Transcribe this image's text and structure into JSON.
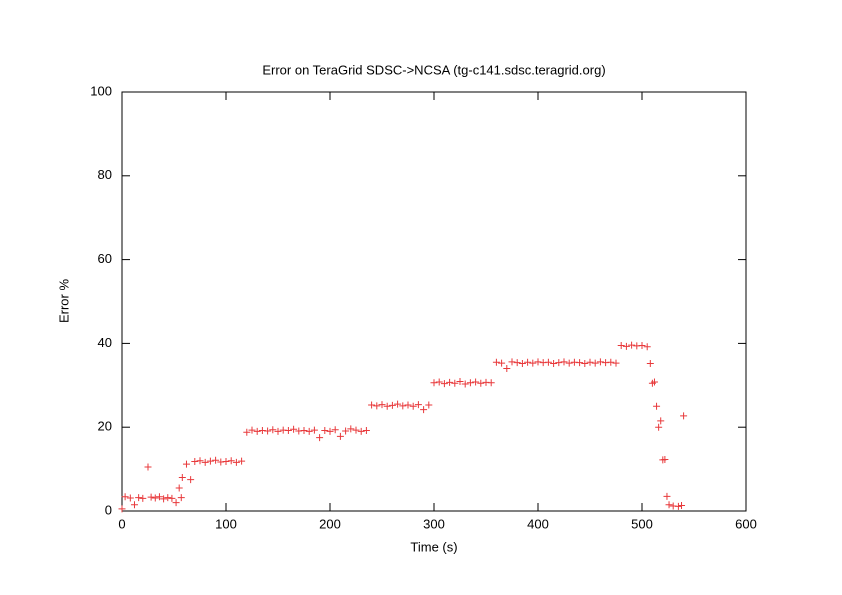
{
  "chart_data": {
    "type": "scatter",
    "title": "Error on TeraGrid SDSC->NCSA (tg-c141.sdsc.teragrid.org)",
    "x_label": "Time (s)",
    "y_label": "Error %",
    "xlim": [
      0,
      600
    ],
    "xticks": [
      0,
      100,
      200,
      300,
      400,
      500,
      600
    ],
    "ylim": [
      0,
      100
    ],
    "yticks": [
      0,
      20,
      40,
      60,
      80,
      100
    ],
    "grid": false,
    "color": "#e8393b",
    "x": [
      0,
      3,
      8,
      12,
      16,
      20,
      25,
      28,
      32,
      36,
      40,
      44,
      48,
      52,
      55,
      57,
      58,
      62,
      66,
      70,
      75,
      80,
      85,
      90,
      95,
      100,
      105,
      110,
      115,
      120,
      125,
      130,
      135,
      140,
      145,
      150,
      155,
      160,
      165,
      170,
      175,
      180,
      185,
      190,
      195,
      200,
      205,
      210,
      215,
      220,
      225,
      230,
      235,
      240,
      245,
      250,
      255,
      260,
      265,
      270,
      275,
      280,
      285,
      290,
      295,
      300,
      305,
      310,
      315,
      320,
      325,
      330,
      335,
      340,
      345,
      350,
      355,
      360,
      365,
      370,
      375,
      380,
      385,
      390,
      395,
      400,
      405,
      410,
      415,
      420,
      425,
      430,
      435,
      440,
      445,
      450,
      455,
      460,
      465,
      470,
      475,
      480,
      485,
      490,
      495,
      500,
      505,
      508,
      510,
      512,
      514,
      516,
      518,
      520,
      522,
      524,
      526,
      530,
      535,
      538,
      540
    ],
    "values": [
      0.5,
      3.4,
      3.1,
      1.5,
      3.2,
      3.0,
      10.5,
      3.3,
      3.1,
      3.4,
      2.9,
      3.2,
      3.0,
      2.0,
      5.5,
      3.2,
      8.0,
      11.2,
      7.5,
      11.8,
      12.0,
      11.6,
      11.9,
      12.1,
      11.7,
      11.8,
      12.0,
      11.6,
      11.9,
      18.8,
      19.3,
      19.0,
      19.2,
      19.1,
      19.4,
      19.0,
      19.3,
      19.2,
      19.5,
      19.1,
      19.2,
      19.0,
      19.3,
      17.5,
      19.2,
      19.0,
      19.4,
      17.8,
      19.1,
      19.6,
      19.3,
      19.0,
      19.2,
      25.3,
      25.1,
      25.4,
      25.0,
      25.2,
      25.5,
      25.1,
      25.3,
      25.0,
      25.4,
      24.2,
      25.3,
      30.6,
      30.8,
      30.4,
      30.7,
      30.5,
      30.9,
      30.3,
      30.6,
      30.8,
      30.5,
      30.7,
      30.6,
      35.5,
      35.3,
      34.0,
      35.6,
      35.4,
      35.2,
      35.5,
      35.3,
      35.6,
      35.4,
      35.5,
      35.2,
      35.4,
      35.6,
      35.3,
      35.5,
      35.4,
      35.2,
      35.5,
      35.3,
      35.6,
      35.4,
      35.5,
      35.3,
      39.5,
      39.3,
      39.6,
      39.4,
      39.5,
      39.2,
      35.2,
      30.5,
      30.8,
      25.0,
      20.0,
      21.5,
      12.2,
      12.3,
      3.5,
      1.5,
      1.2,
      1.1,
      1.3,
      22.7
    ]
  }
}
